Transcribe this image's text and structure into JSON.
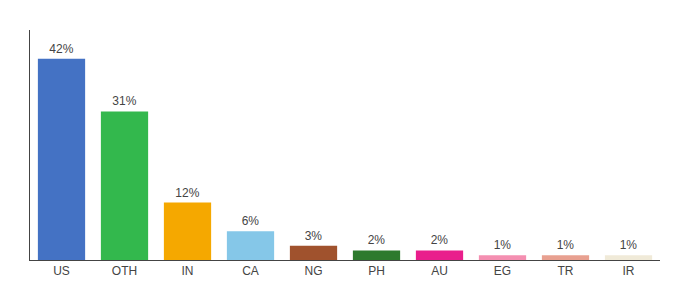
{
  "chart_data": {
    "type": "bar",
    "categories": [
      "US",
      "OTH",
      "IN",
      "CA",
      "NG",
      "PH",
      "AU",
      "EG",
      "TR",
      "IR"
    ],
    "values": [
      42,
      31,
      12,
      6,
      3,
      2,
      2,
      1,
      1,
      1
    ],
    "value_labels": [
      "42%",
      "31%",
      "12%",
      "6%",
      "3%",
      "2%",
      "2%",
      "1%",
      "1%",
      "1%"
    ],
    "data_labels": true,
    "colors": [
      "#4472c4",
      "#33b84d",
      "#f5a800",
      "#85c7e8",
      "#a0522d",
      "#2d7a2d",
      "#e91e8c",
      "#f48fb1",
      "#e8a090",
      "#f0ead8"
    ],
    "ylim": [
      0,
      48
    ],
    "tick_labels": "x",
    "grid": false
  }
}
